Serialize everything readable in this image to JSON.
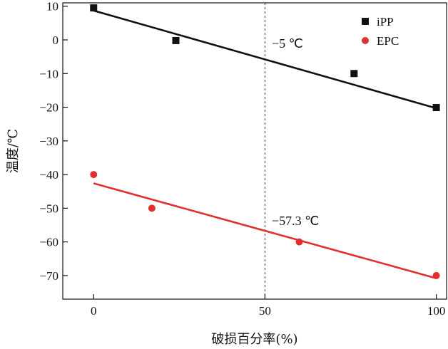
{
  "chart_data": {
    "type": "scatter",
    "xlabel": "破损百分率(%)",
    "ylabel": "温度/℃",
    "xlim": [
      -9,
      103
    ],
    "ylim": [
      -77,
      11
    ],
    "xticks": [
      0,
      50,
      100
    ],
    "xtick_labels": [
      "0",
      "50",
      "100"
    ],
    "yticks": [
      10,
      0,
      -10,
      -20,
      -30,
      -40,
      -50,
      -60,
      -70
    ],
    "ytick_labels": [
      "10",
      "0",
      "−10",
      "−20",
      "−30",
      "−40",
      "−50",
      "−60",
      "−70"
    ],
    "grid": false,
    "legend": "top-right",
    "reference_line": {
      "x": 50,
      "style": "dashed"
    },
    "series": [
      {
        "name": "iPP",
        "marker": "square",
        "color": "#111111",
        "x": [
          0,
          24,
          76,
          100
        ],
        "y": [
          9.5,
          -0.2,
          -10,
          -20.1
        ],
        "fit": {
          "x": [
            0,
            100
          ],
          "y": [
            8.7,
            -20.3
          ]
        }
      },
      {
        "name": "EPC",
        "marker": "circle",
        "color": "#e03030",
        "x": [
          0,
          17,
          60,
          100
        ],
        "y": [
          -40,
          -50,
          -60,
          -70
        ],
        "fit": {
          "x": [
            0,
            100
          ],
          "y": [
            -42.6,
            -70.8
          ]
        }
      }
    ],
    "annotations": [
      {
        "text": "−5 ℃",
        "x": 52,
        "y": -2.3
      },
      {
        "text": "−57.3 ℃",
        "x": 52,
        "y": -55
      }
    ]
  }
}
